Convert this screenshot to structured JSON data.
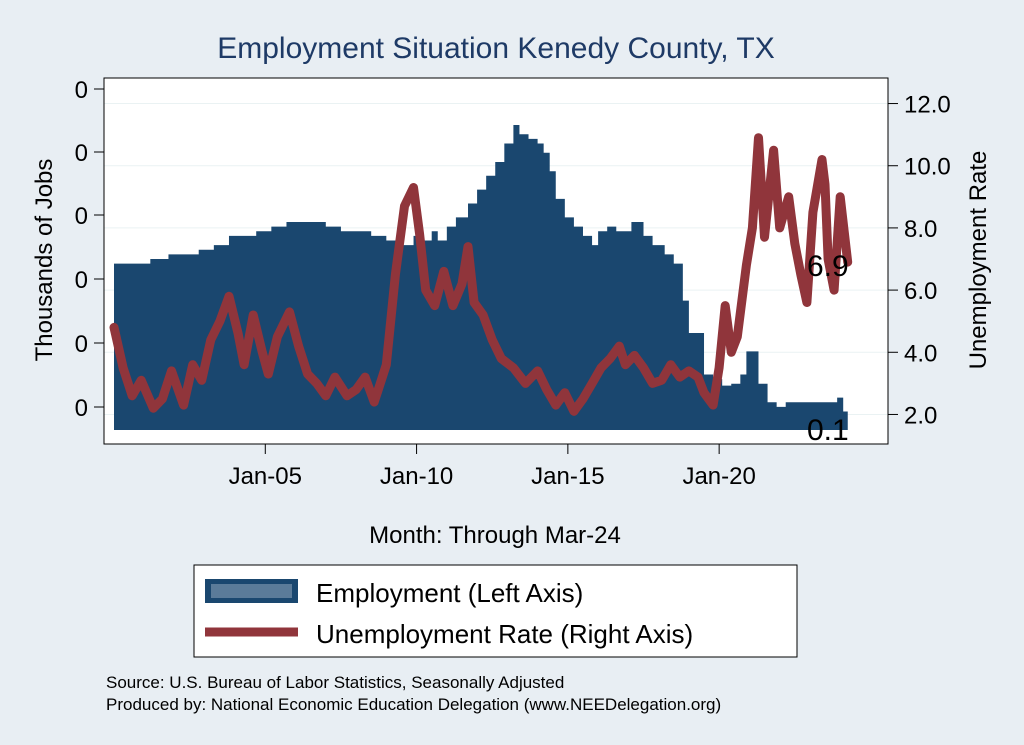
{
  "chart_data": {
    "type": "area+line",
    "title": "Employment Situation Kenedy  County, TX",
    "xlabel": "Month: Through Mar-24",
    "ylabel_left": "Thousands of Jobs",
    "ylabel_right": "Unemployment Rate",
    "x_ticks": [
      "Jan-05",
      "Jan-10",
      "Jan-15",
      "Jan-20"
    ],
    "x_tick_years": [
      2005,
      2010,
      2015,
      2020
    ],
    "x_range": [
      2000.0,
      2025.25
    ],
    "left_ticks": [
      "0",
      "0",
      "0",
      "0",
      "0",
      "0"
    ],
    "left_range": [
      0.1,
      0.47
    ],
    "left_tick_values": [
      0.12,
      0.19,
      0.26,
      0.33,
      0.4,
      0.47
    ],
    "right_ticks": [
      "2.0",
      "4.0",
      "6.0",
      "8.0",
      "10.0",
      "12.0"
    ],
    "right_range": [
      1.5,
      12.5
    ],
    "right_tick_values": [
      2.0,
      4.0,
      6.0,
      8.0,
      10.0,
      12.0
    ],
    "end_labels": {
      "employment": "0.1",
      "unemployment": "6.9"
    },
    "series": [
      {
        "name": "Employment (Left Axis)",
        "axis": "left",
        "color": "#1a476f",
        "points": [
          [
            2000.0,
            0.28
          ],
          [
            2001.0,
            0.28
          ],
          [
            2001.2,
            0.285
          ],
          [
            2001.6,
            0.285
          ],
          [
            2001.8,
            0.29
          ],
          [
            2002.5,
            0.29
          ],
          [
            2002.8,
            0.295
          ],
          [
            2003.3,
            0.3
          ],
          [
            2003.8,
            0.31
          ],
          [
            2004.5,
            0.31
          ],
          [
            2004.7,
            0.315
          ],
          [
            2005.2,
            0.32
          ],
          [
            2005.7,
            0.325
          ],
          [
            2006.5,
            0.325
          ],
          [
            2007.0,
            0.32
          ],
          [
            2007.5,
            0.315
          ],
          [
            2008.0,
            0.315
          ],
          [
            2008.5,
            0.31
          ],
          [
            2009.0,
            0.305
          ],
          [
            2009.5,
            0.3
          ],
          [
            2009.9,
            0.31
          ],
          [
            2010.2,
            0.305
          ],
          [
            2010.5,
            0.315
          ],
          [
            2010.7,
            0.305
          ],
          [
            2011.0,
            0.32
          ],
          [
            2011.3,
            0.33
          ],
          [
            2011.7,
            0.345
          ],
          [
            2012.0,
            0.36
          ],
          [
            2012.3,
            0.375
          ],
          [
            2012.6,
            0.39
          ],
          [
            2012.9,
            0.41
          ],
          [
            2013.2,
            0.43
          ],
          [
            2013.4,
            0.42
          ],
          [
            2013.7,
            0.415
          ],
          [
            2014.0,
            0.41
          ],
          [
            2014.2,
            0.4
          ],
          [
            2014.4,
            0.38
          ],
          [
            2014.6,
            0.35
          ],
          [
            2014.9,
            0.33
          ],
          [
            2015.2,
            0.32
          ],
          [
            2015.5,
            0.31
          ],
          [
            2015.8,
            0.3
          ],
          [
            2016.0,
            0.315
          ],
          [
            2016.3,
            0.32
          ],
          [
            2016.6,
            0.315
          ],
          [
            2016.9,
            0.315
          ],
          [
            2017.1,
            0.325
          ],
          [
            2017.3,
            0.325
          ],
          [
            2017.5,
            0.31
          ],
          [
            2017.8,
            0.3
          ],
          [
            2018.2,
            0.29
          ],
          [
            2018.5,
            0.28
          ],
          [
            2018.8,
            0.24
          ],
          [
            2019.0,
            0.205
          ],
          [
            2019.5,
            0.16
          ],
          [
            2019.8,
            0.155
          ],
          [
            2020.1,
            0.148
          ],
          [
            2020.4,
            0.15
          ],
          [
            2020.7,
            0.16
          ],
          [
            2020.9,
            0.185
          ],
          [
            2021.2,
            0.185
          ],
          [
            2021.3,
            0.15
          ],
          [
            2021.6,
            0.13
          ],
          [
            2021.9,
            0.125
          ],
          [
            2022.2,
            0.13
          ],
          [
            2022.6,
            0.13
          ],
          [
            2023.0,
            0.13
          ],
          [
            2023.5,
            0.13
          ],
          [
            2023.9,
            0.135
          ],
          [
            2024.1,
            0.12
          ],
          [
            2024.25,
            0.115
          ]
        ]
      },
      {
        "name": "Unemployment Rate (Right Axis)",
        "axis": "right",
        "color": "#90353b",
        "points": [
          [
            2000.0,
            4.8
          ],
          [
            2000.3,
            3.5
          ],
          [
            2000.6,
            2.6
          ],
          [
            2000.9,
            3.1
          ],
          [
            2001.3,
            2.2
          ],
          [
            2001.6,
            2.5
          ],
          [
            2001.9,
            3.4
          ],
          [
            2002.3,
            2.3
          ],
          [
            2002.6,
            3.6
          ],
          [
            2002.9,
            3.1
          ],
          [
            2003.2,
            4.4
          ],
          [
            2003.5,
            5.0
          ],
          [
            2003.8,
            5.8
          ],
          [
            2004.1,
            4.6
          ],
          [
            2004.3,
            3.6
          ],
          [
            2004.6,
            5.2
          ],
          [
            2004.9,
            4.0
          ],
          [
            2005.1,
            3.3
          ],
          [
            2005.4,
            4.5
          ],
          [
            2005.8,
            5.3
          ],
          [
            2006.1,
            4.2
          ],
          [
            2006.4,
            3.3
          ],
          [
            2006.7,
            3.0
          ],
          [
            2007.0,
            2.6
          ],
          [
            2007.3,
            3.2
          ],
          [
            2007.7,
            2.6
          ],
          [
            2008.0,
            2.8
          ],
          [
            2008.3,
            3.2
          ],
          [
            2008.6,
            2.4
          ],
          [
            2008.8,
            3.0
          ],
          [
            2009.0,
            3.6
          ],
          [
            2009.3,
            6.5
          ],
          [
            2009.6,
            8.7
          ],
          [
            2009.9,
            9.3
          ],
          [
            2010.1,
            7.8
          ],
          [
            2010.3,
            6.0
          ],
          [
            2010.6,
            5.5
          ],
          [
            2010.9,
            6.6
          ],
          [
            2011.2,
            5.5
          ],
          [
            2011.5,
            6.2
          ],
          [
            2011.7,
            7.4
          ],
          [
            2011.9,
            5.6
          ],
          [
            2012.2,
            5.2
          ],
          [
            2012.5,
            4.4
          ],
          [
            2012.8,
            3.8
          ],
          [
            2013.2,
            3.5
          ],
          [
            2013.6,
            3.0
          ],
          [
            2014.0,
            3.4
          ],
          [
            2014.3,
            2.8
          ],
          [
            2014.6,
            2.3
          ],
          [
            2014.9,
            2.7
          ],
          [
            2015.2,
            2.1
          ],
          [
            2015.5,
            2.5
          ],
          [
            2015.8,
            3.0
          ],
          [
            2016.1,
            3.5
          ],
          [
            2016.4,
            3.8
          ],
          [
            2016.7,
            4.2
          ],
          [
            2016.9,
            3.6
          ],
          [
            2017.2,
            3.9
          ],
          [
            2017.5,
            3.5
          ],
          [
            2017.8,
            3.0
          ],
          [
            2018.1,
            3.1
          ],
          [
            2018.4,
            3.6
          ],
          [
            2018.7,
            3.2
          ],
          [
            2019.0,
            3.4
          ],
          [
            2019.3,
            3.2
          ],
          [
            2019.5,
            2.7
          ],
          [
            2019.8,
            2.3
          ],
          [
            2020.0,
            3.5
          ],
          [
            2020.2,
            5.5
          ],
          [
            2020.4,
            4.0
          ],
          [
            2020.6,
            4.5
          ],
          [
            2020.9,
            6.8
          ],
          [
            2021.1,
            8.0
          ],
          [
            2021.3,
            10.9
          ],
          [
            2021.5,
            7.7
          ],
          [
            2021.8,
            10.5
          ],
          [
            2022.0,
            8.0
          ],
          [
            2022.3,
            9.0
          ],
          [
            2022.5,
            7.5
          ],
          [
            2022.7,
            6.5
          ],
          [
            2022.9,
            5.6
          ],
          [
            2023.1,
            8.5
          ],
          [
            2023.4,
            10.2
          ],
          [
            2023.5,
            9.4
          ],
          [
            2023.6,
            7.0
          ],
          [
            2023.8,
            6.0
          ],
          [
            2024.0,
            9.0
          ],
          [
            2024.25,
            6.9
          ]
        ]
      }
    ],
    "legend": [
      "Employment (Left Axis)",
      "Unemployment Rate (Right Axis)"
    ]
  },
  "footer": {
    "source": "Source: U.S. Bureau of Labor Statistics, Seasonally Adjusted",
    "produced_by": "Produced by: National Economic Education Delegation (www.NEEDelegation.org)"
  },
  "colors": {
    "background": "#e8eef3",
    "plot_area": "#ffffff",
    "employment": "#1a476f",
    "unemployment": "#90353b",
    "title": "#1e3a66"
  }
}
